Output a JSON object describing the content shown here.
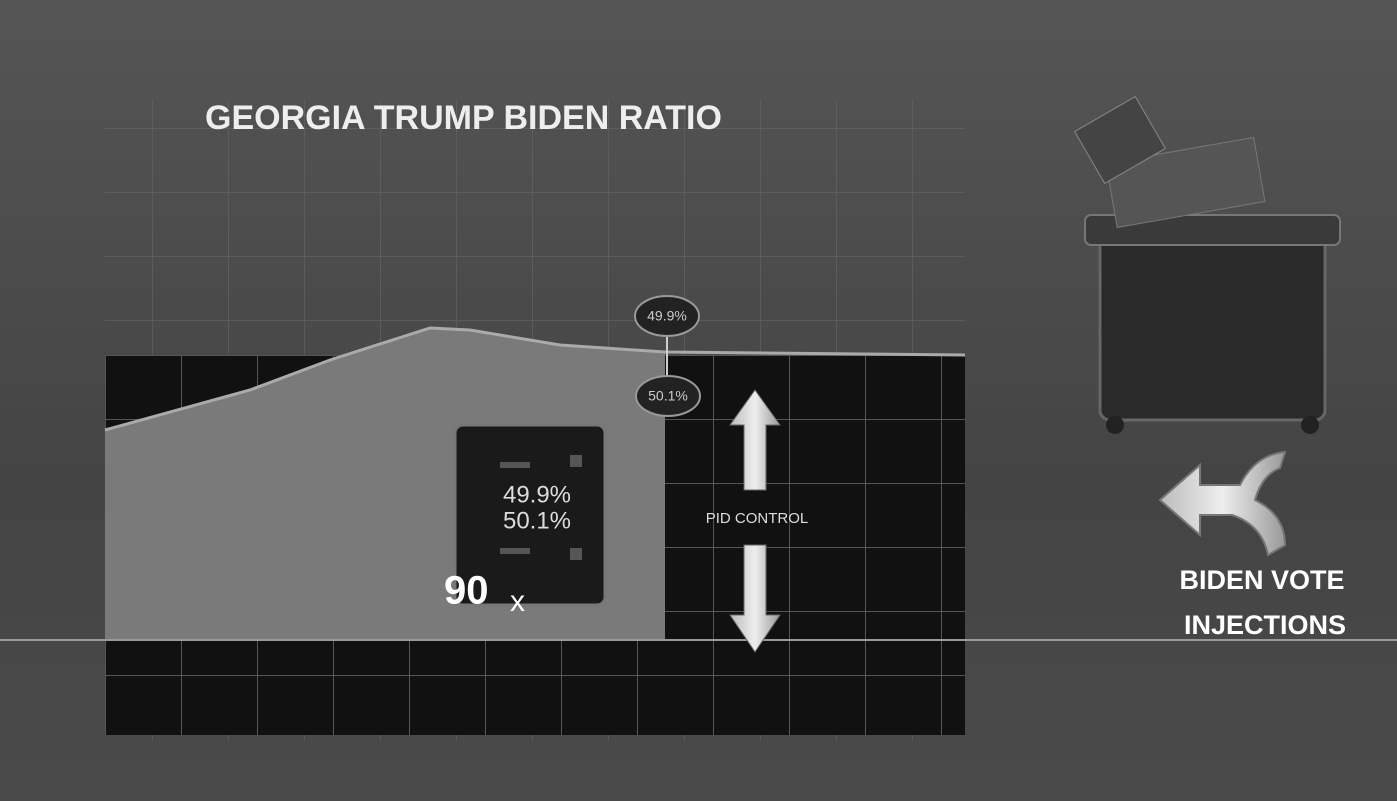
{
  "title": "GEORGIA TRUMP BIDEN RATIO",
  "markers": [
    "49.9%",
    "50.1%"
  ],
  "document": {
    "lines": [
      "49.9%",
      "50.1%"
    ],
    "multiplier": "90",
    "unit": "x"
  },
  "control": {
    "label": "PID CONTROL"
  },
  "injections": {
    "label": [
      "BIDEN VOTE",
      "INJECTIONS"
    ]
  }
}
